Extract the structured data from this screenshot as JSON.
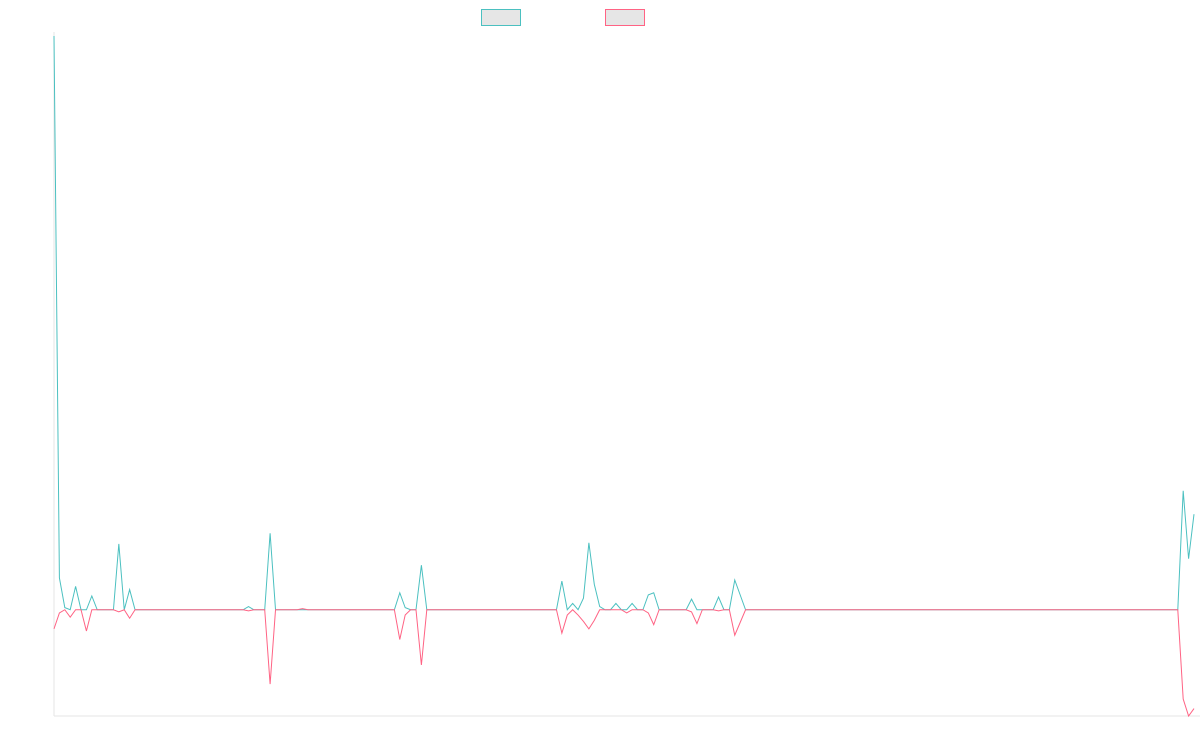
{
  "chart_data": {
    "type": "line",
    "title": "",
    "xlabel": "",
    "ylabel": "",
    "grid": false,
    "legend_placement": "top-center",
    "x_count": 212,
    "ylim": [
      -100,
      540
    ],
    "series": [
      {
        "color": "#4bc0c0",
        "fill": "#e6e6e6",
        "values": [
          540,
          30,
          2,
          0,
          22,
          0,
          0,
          13,
          0,
          0,
          0,
          0,
          62,
          0,
          19,
          0,
          0,
          0,
          0,
          0,
          0,
          0,
          0,
          0,
          0,
          0,
          0,
          0,
          0,
          0,
          0,
          0,
          0,
          0,
          0,
          0,
          3,
          0,
          0,
          0,
          72,
          0,
          0,
          0,
          0,
          0,
          0,
          0,
          0,
          0,
          0,
          0,
          0,
          0,
          0,
          0,
          0,
          0,
          0,
          0,
          0,
          0,
          0,
          0,
          16,
          2,
          0,
          0,
          42,
          0,
          0,
          0,
          0,
          0,
          0,
          0,
          0,
          0,
          0,
          0,
          0,
          0,
          0,
          0,
          0,
          0,
          0,
          0,
          0,
          0,
          0,
          0,
          0,
          0,
          27,
          0,
          6,
          0,
          11,
          63,
          24,
          3,
          0,
          0,
          6,
          0,
          0,
          6,
          0,
          0,
          14,
          16,
          0,
          0,
          0,
          0,
          0,
          0,
          10,
          0,
          0,
          0,
          0,
          12,
          0,
          0,
          28,
          14,
          0,
          0,
          0,
          0,
          0,
          0,
          0,
          0,
          0,
          0,
          0,
          0,
          0,
          0,
          0,
          0,
          0,
          0,
          0,
          0,
          0,
          0,
          0,
          0,
          0,
          0,
          0,
          0,
          0,
          0,
          0,
          0,
          0,
          0,
          0,
          0,
          0,
          0,
          0,
          0,
          0,
          0,
          0,
          0,
          0,
          0,
          0,
          0,
          0,
          0,
          0,
          0,
          0,
          0,
          0,
          0,
          0,
          0,
          0,
          0,
          0,
          0,
          0,
          0,
          0,
          0,
          0,
          0,
          0,
          0,
          0,
          0,
          0,
          0,
          0,
          0,
          0,
          0,
          0,
          0,
          0,
          112,
          48,
          90
        ]
      },
      {
        "color": "#ff6384",
        "fill": "#e6e6e6",
        "values": [
          -18,
          -3,
          0,
          -7,
          0,
          0,
          -20,
          0,
          0,
          0,
          0,
          0,
          -2,
          0,
          -8,
          0,
          0,
          0,
          0,
          0,
          0,
          0,
          0,
          0,
          0,
          0,
          0,
          0,
          0,
          0,
          0,
          0,
          0,
          0,
          0,
          0,
          -1,
          0,
          0,
          0,
          -70,
          0,
          0,
          0,
          0,
          0,
          1,
          0,
          0,
          0,
          0,
          0,
          0,
          0,
          0,
          0,
          0,
          0,
          0,
          0,
          0,
          0,
          0,
          0,
          -28,
          -5,
          0,
          0,
          -52,
          0,
          0,
          0,
          0,
          0,
          0,
          0,
          0,
          0,
          0,
          0,
          0,
          0,
          0,
          0,
          0,
          0,
          0,
          0,
          0,
          0,
          0,
          0,
          0,
          0,
          -22,
          -5,
          0,
          -5,
          -11,
          -18,
          -10,
          0,
          0,
          0,
          0,
          0,
          -3,
          0,
          0,
          0,
          -3,
          -14,
          0,
          0,
          0,
          0,
          0,
          0,
          -2,
          -13,
          0,
          0,
          0,
          -1,
          0,
          0,
          -24,
          -12,
          0,
          0,
          0,
          0,
          0,
          0,
          0,
          0,
          0,
          0,
          0,
          0,
          0,
          0,
          0,
          0,
          0,
          0,
          0,
          0,
          0,
          0,
          0,
          0,
          0,
          0,
          0,
          0,
          0,
          0,
          0,
          0,
          0,
          0,
          0,
          0,
          0,
          0,
          0,
          0,
          0,
          0,
          0,
          0,
          0,
          0,
          0,
          0,
          0,
          0,
          0,
          0,
          0,
          0,
          0,
          0,
          0,
          0,
          0,
          0,
          0,
          0,
          0,
          0,
          0,
          0,
          0,
          0,
          0,
          0,
          0,
          0,
          0,
          0,
          0,
          0,
          0,
          0,
          0,
          0,
          0,
          -84,
          -100,
          -93
        ]
      }
    ]
  }
}
